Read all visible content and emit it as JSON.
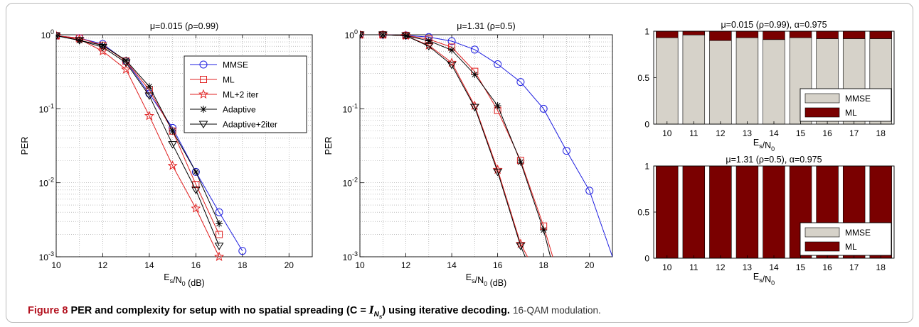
{
  "caption": {
    "label": "Figure 8",
    "title_before": "PER and complexity for setup with no spatial spreading (",
    "math_main": "C = ",
    "math_italic": "I",
    "math_sub": "N",
    "math_subsub": "s",
    "title_after": ") using iterative decoding.",
    "description": "16-QAM modulation."
  },
  "legend": {
    "per_series": [
      "MMSE",
      "ML",
      "ML+2 iter",
      "Adaptive",
      "Adaptive+2iter"
    ],
    "bar_series": [
      "MMSE",
      "ML"
    ]
  },
  "colors": {
    "mmse_line": "#1f1fe0",
    "ml_line": "#e02020",
    "adaptive_line": "#000000",
    "bar_mmse": "#d6d2c9",
    "bar_ml": "#7a0000"
  },
  "chart_data": [
    {
      "type": "line",
      "title": "μ=0.015 (ρ=0.99)",
      "xlabel": "E_s/N_0 (dB)",
      "ylabel": "PER",
      "xlim": [
        10,
        21
      ],
      "ylim": [
        0.001,
        1
      ],
      "yscale": "log",
      "xticks": [
        10,
        12,
        14,
        16,
        18,
        20
      ],
      "yticks": [
        "10^0",
        "10^-1",
        "10^-2",
        "10^-3"
      ],
      "grid": true,
      "legend_position": "top-right",
      "series": [
        {
          "name": "MMSE",
          "marker": "circle",
          "color": "#1f1fe0",
          "x": [
            10,
            11,
            12,
            13,
            14,
            15,
            16,
            17,
            18
          ],
          "y": [
            0.97,
            0.9,
            0.75,
            0.44,
            0.16,
            0.055,
            0.014,
            0.004,
            0.0012
          ]
        },
        {
          "name": "ML",
          "marker": "square",
          "color": "#e02020",
          "x": [
            10,
            11,
            12,
            13,
            14,
            15,
            16,
            17
          ],
          "y": [
            0.97,
            0.9,
            0.72,
            0.44,
            0.18,
            0.05,
            0.0095,
            0.002
          ]
        },
        {
          "name": "ML+2 iter",
          "marker": "star",
          "color": "#e02020",
          "x": [
            10,
            11,
            12,
            13,
            14,
            15,
            16,
            17
          ],
          "y": [
            0.97,
            0.87,
            0.6,
            0.34,
            0.08,
            0.017,
            0.0045,
            0.001
          ]
        },
        {
          "name": "Adaptive",
          "marker": "asterisk",
          "color": "#000000",
          "x": [
            10,
            11,
            12,
            13,
            14,
            15,
            16,
            17
          ],
          "y": [
            0.97,
            0.84,
            0.72,
            0.45,
            0.2,
            0.05,
            0.014,
            0.0028
          ]
        },
        {
          "name": "Adaptive+2iter",
          "marker": "triangle",
          "color": "#000000",
          "x": [
            10,
            11,
            12,
            13,
            14,
            15,
            16,
            17
          ],
          "y": [
            0.97,
            0.84,
            0.68,
            0.42,
            0.15,
            0.033,
            0.008,
            0.0014
          ]
        }
      ]
    },
    {
      "type": "line",
      "title": "μ=1.31 (ρ=0.5)",
      "xlabel": "E_s/N_0 (dB)",
      "ylabel": "PER",
      "xlim": [
        10,
        21
      ],
      "ylim": [
        0.001,
        1
      ],
      "yscale": "log",
      "xticks": [
        10,
        12,
        14,
        16,
        18,
        20
      ],
      "yticks": [
        "10^0",
        "10^-1",
        "10^-2",
        "10^-3"
      ],
      "grid": true,
      "series": [
        {
          "name": "MMSE",
          "marker": "circle",
          "color": "#1f1fe0",
          "x": [
            10,
            11,
            12,
            13,
            14,
            15,
            16,
            17,
            18,
            19,
            20,
            21
          ],
          "y": [
            1,
            1,
            0.98,
            0.93,
            0.82,
            0.63,
            0.4,
            0.23,
            0.1,
            0.027,
            0.0078,
            0.001
          ]
        },
        {
          "name": "ML",
          "marker": "square",
          "color": "#e02020",
          "x": [
            10,
            11,
            12,
            13,
            14,
            15,
            16,
            17,
            18,
            18.4
          ],
          "y": [
            1,
            1,
            0.98,
            0.87,
            0.68,
            0.32,
            0.095,
            0.02,
            0.0026,
            0.001
          ]
        },
        {
          "name": "ML+2 iter",
          "marker": "star",
          "color": "#e02020",
          "x": [
            10,
            11,
            12,
            13,
            14,
            15,
            16,
            17,
            17.3
          ],
          "y": [
            1,
            1,
            0.97,
            0.72,
            0.42,
            0.11,
            0.015,
            0.0015,
            0.001
          ]
        },
        {
          "name": "Adaptive",
          "marker": "asterisk",
          "color": "#000000",
          "x": [
            10,
            11,
            12,
            13,
            14,
            15,
            16,
            17,
            18,
            18.3
          ],
          "y": [
            1,
            1,
            0.97,
            0.83,
            0.62,
            0.29,
            0.11,
            0.019,
            0.0023,
            0.001
          ]
        },
        {
          "name": "Adaptive+2iter",
          "marker": "triangle",
          "color": "#000000",
          "x": [
            10,
            11,
            12,
            13,
            14,
            15,
            16,
            17,
            17.2
          ],
          "y": [
            1,
            1,
            0.97,
            0.7,
            0.39,
            0.105,
            0.014,
            0.0014,
            0.001
          ]
        }
      ]
    },
    {
      "type": "bar",
      "stacked": true,
      "title": "μ=0.015 (ρ=0.99), α=0.975",
      "xlabel": "E_s/N_0",
      "categories": [
        "10",
        "11",
        "12",
        "13",
        "14",
        "15",
        "16",
        "17",
        "18"
      ],
      "ylim": [
        0,
        1
      ],
      "yticks": [
        "0",
        "0.5",
        "1"
      ],
      "legend_position": "bottom-right",
      "series": [
        {
          "name": "MMSE",
          "color": "#d6d2c9",
          "values": [
            0.93,
            0.96,
            0.9,
            0.93,
            0.91,
            0.93,
            0.92,
            0.92,
            0.92
          ]
        },
        {
          "name": "ML",
          "color": "#7a0000",
          "values": [
            0.07,
            0.04,
            0.1,
            0.07,
            0.09,
            0.07,
            0.08,
            0.08,
            0.08
          ]
        }
      ]
    },
    {
      "type": "bar",
      "stacked": true,
      "title": "μ=1.31 (ρ=0.5), α=0.975",
      "xlabel": "E_s/N_0",
      "categories": [
        "10",
        "11",
        "12",
        "13",
        "14",
        "15",
        "16",
        "17",
        "18"
      ],
      "ylim": [
        0,
        1
      ],
      "yticks": [
        "0",
        "0.5",
        "1"
      ],
      "legend_position": "bottom-right",
      "series": [
        {
          "name": "MMSE",
          "color": "#d6d2c9",
          "values": [
            0,
            0,
            0,
            0,
            0,
            0,
            0,
            0,
            0
          ]
        },
        {
          "name": "ML",
          "color": "#7a0000",
          "values": [
            1,
            1,
            1,
            1,
            1,
            1,
            1,
            1,
            1
          ]
        }
      ]
    }
  ]
}
